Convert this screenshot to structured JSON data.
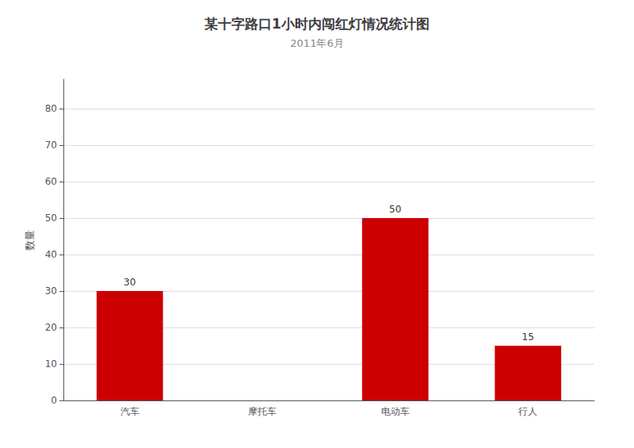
{
  "chart_data": {
    "type": "bar",
    "title": "某十字路口1小时内闯红灯情况统计图",
    "subtitle": "2011年6月",
    "ylabel": "数量",
    "categories": [
      "汽车",
      "摩托车",
      "电动车",
      "行人"
    ],
    "values": [
      30,
      0,
      50,
      15
    ],
    "value_labels": [
      "30",
      null,
      "50",
      "15"
    ],
    "data_labels": true,
    "color": "#cc0000",
    "ylim": [
      0,
      88
    ],
    "yticks": [
      0,
      10,
      20,
      30,
      40,
      50,
      60,
      70,
      80
    ],
    "grid": true
  }
}
